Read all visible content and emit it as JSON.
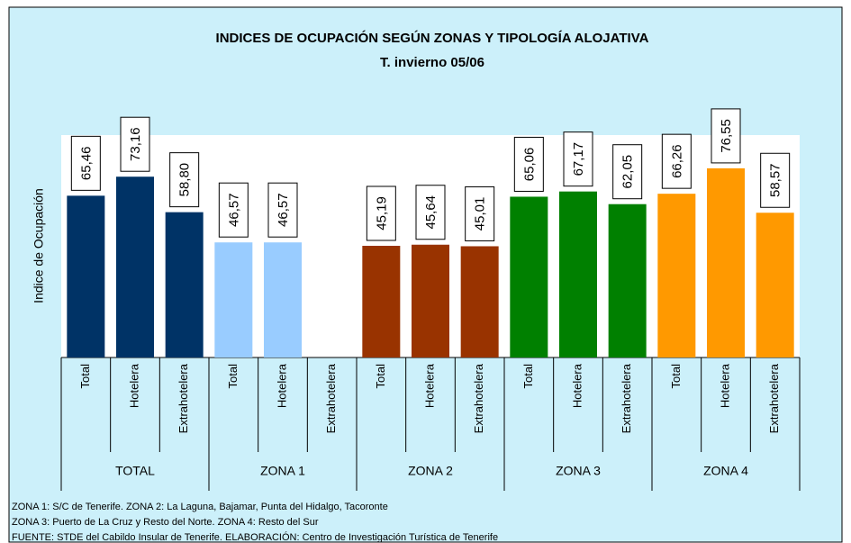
{
  "chart_data": {
    "type": "bar",
    "title": "INDICES DE OCUPACIÓN SEGÚN ZONAS Y TIPOLOGÍA ALOJATIVA",
    "subtitle": "T. invierno 05/06",
    "y_label": "Indice de Ocupación",
    "ylim": [
      0,
      90
    ],
    "groups": [
      {
        "name": "TOTAL",
        "color": "#003366",
        "categories": [
          "Total",
          "Hotelera",
          "Extrahotelera"
        ],
        "values": [
          65.46,
          73.16,
          58.8
        ],
        "value_labels": [
          "65,46",
          "73,16",
          "58,80"
        ]
      },
      {
        "name": "ZONA 1",
        "color": "#99ccff",
        "categories": [
          "Total",
          "Hotelera",
          "Extrahotelera"
        ],
        "values": [
          46.57,
          46.57,
          null
        ],
        "value_labels": [
          "46,57",
          "46,57",
          null
        ]
      },
      {
        "name": "ZONA 2",
        "color": "#993300",
        "categories": [
          "Total",
          "Hotelera",
          "Extrahotelera"
        ],
        "values": [
          45.19,
          45.64,
          45.01
        ],
        "value_labels": [
          "45,19",
          "45,64",
          "45,01"
        ]
      },
      {
        "name": "ZONA 3",
        "color": "#008000",
        "categories": [
          "Total",
          "Hotelera",
          "Extrahotelera"
        ],
        "values": [
          65.06,
          67.17,
          62.05
        ],
        "value_labels": [
          "65,06",
          "67,17",
          "62,05"
        ]
      },
      {
        "name": "ZONA 4",
        "color": "#ff9900",
        "categories": [
          "Total",
          "Hotelera",
          "Extrahotelera"
        ],
        "values": [
          66.26,
          76.55,
          58.57
        ],
        "value_labels": [
          "66,26",
          "76,55",
          "58,57"
        ]
      }
    ],
    "notes": [
      "ZONA 1: S/C de Tenerife. ZONA 2: La Laguna, Bajamar, Punta del Hidalgo, Tacoronte",
      "ZONA 3: Puerto de La Cruz y Resto del Norte. ZONA 4: Resto del Sur",
      "FUENTE: STDE del Cabildo Insular de Tenerife. ELABORACIÓN: Centro de Investigación Turística de Tenerife"
    ]
  }
}
